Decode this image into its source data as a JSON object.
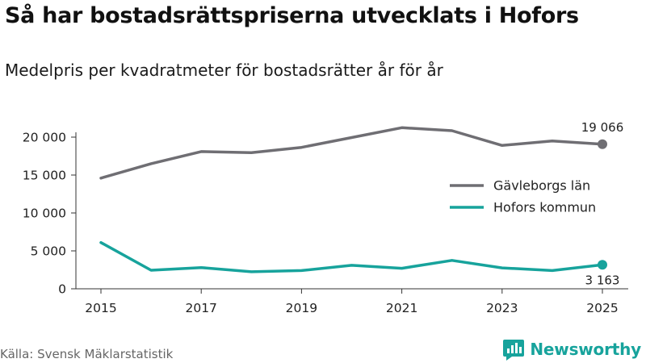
{
  "header": {
    "title": "Så har bostadsrättspriserna utvecklats i Hofors",
    "subtitle": "Medelpris per kvadratmeter för bostadsrätter år för år"
  },
  "footer": {
    "source": "Källa: Svensk Mäklarstatistik",
    "brand": "Newsworthy"
  },
  "colors": {
    "gavleborg": "#6f6e73",
    "hofors": "#17a39c",
    "axis": "#333333",
    "brand": "#17a39c"
  },
  "icons": {
    "brand_logo": "newsworthy-logo-icon"
  },
  "chart_data": {
    "type": "line",
    "title": "Så har bostadsrättspriserna utvecklats i Hofors",
    "subtitle": "Medelpris per kvadratmeter för bostadsrätter år för år",
    "xlabel": "",
    "ylabel": "",
    "x": [
      2015,
      2016,
      2017,
      2018,
      2019,
      2020,
      2021,
      2022,
      2023,
      2024,
      2025
    ],
    "xticks": [
      "2015",
      "2017",
      "2019",
      "2021",
      "2023",
      "2025"
    ],
    "xtick_values": [
      2015,
      2017,
      2019,
      2021,
      2023,
      2025
    ],
    "yticks": [
      "0",
      "5 000",
      "10 000",
      "15 000",
      "20 000"
    ],
    "ytick_values": [
      0,
      5000,
      10000,
      15000,
      20000
    ],
    "ylim": [
      0,
      22000
    ],
    "legend_position": "right",
    "grid": false,
    "series": [
      {
        "name": "Gävleborgs län",
        "key": "gavleborg",
        "values": [
          14600,
          16500,
          18100,
          17950,
          18650,
          19950,
          21250,
          20850,
          18900,
          19500,
          19066
        ],
        "end_label": "19 066",
        "end_label_position": "above"
      },
      {
        "name": "Hofors kommun",
        "key": "hofors",
        "values": [
          6100,
          2450,
          2800,
          2250,
          2400,
          3100,
          2700,
          3750,
          2750,
          2400,
          3163
        ],
        "end_label": "3 163",
        "end_label_position": "below"
      }
    ]
  }
}
